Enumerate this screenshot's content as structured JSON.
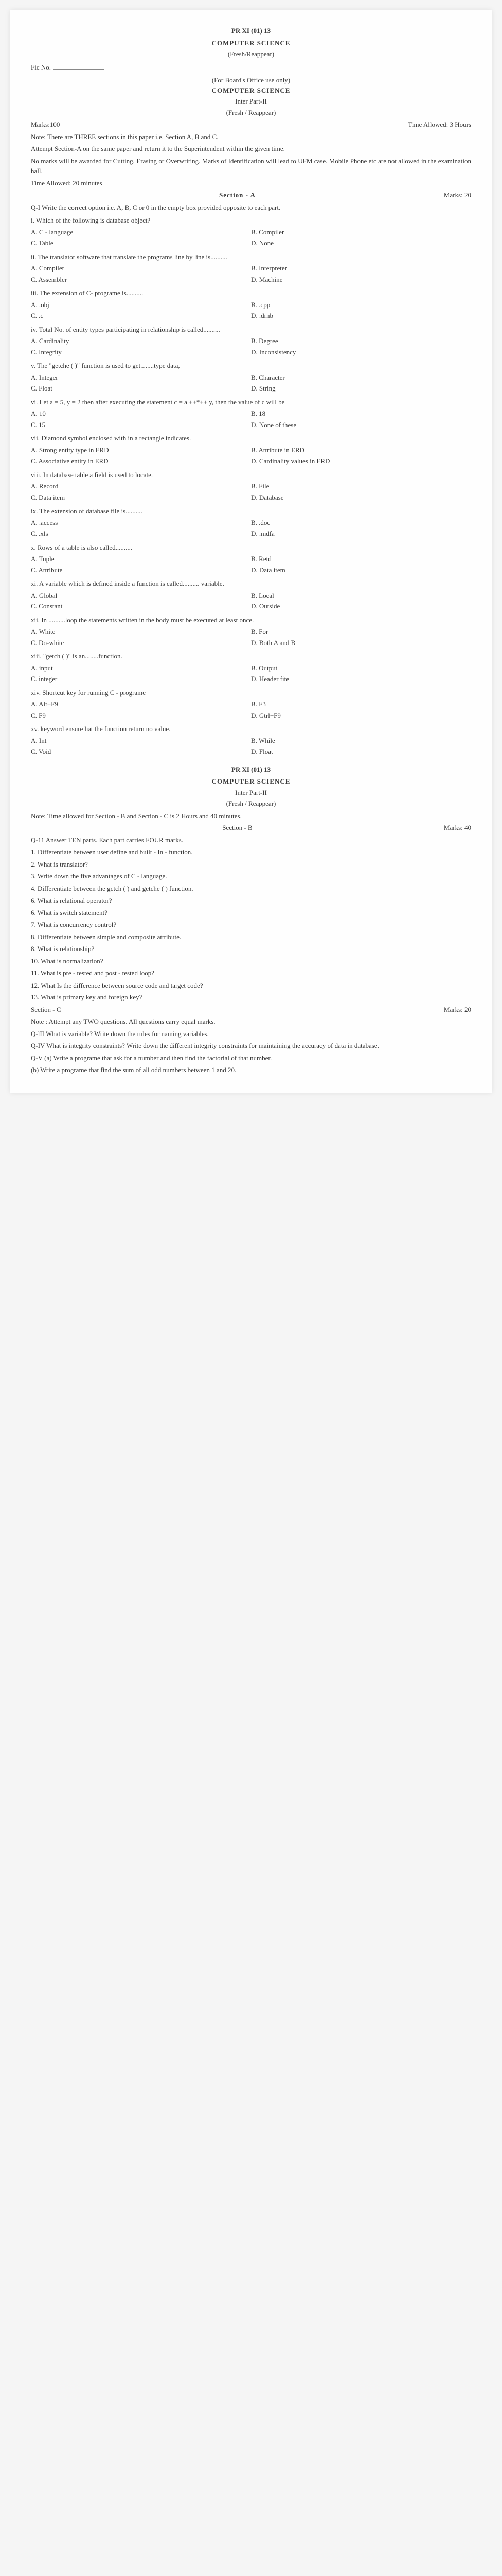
{
  "header": {
    "code": "PR XI (01) 13",
    "subject": "COMPUTER SCIENCE",
    "mode": "(Fresh/Reappear)",
    "fic_label": "Fic No.",
    "office": "(For Board's Office use only)",
    "subject2": "COMPUTER SCIENCE",
    "inter": "Inter Part-II",
    "mode2": "(Fresh / Reappear)",
    "marks_label": "Marks:100",
    "time_label": "Time Allowed: 3 Hours",
    "note": "Note: There are THREE sections in this paper i.e. Section A, B and C.",
    "instr1": "Attempt Section-A on the same paper and return it to the Superintendent within the given time.",
    "instr2": "No marks will be awarded for Cutting, Erasing or Overwriting. Marks of Identification will lead to UFM case. Mobile Phone etc are not allowed in the examination hall.",
    "time_allowed": "Time Allowed: 20 minutes",
    "sectionA": "Section - A",
    "sectionA_marks": "Marks: 20"
  },
  "q1": {
    "stem": "Q-I  Write the correct option i.e. A, B, C or 0 in the empty box provided opposite to each part.",
    "items": [
      {
        "n": "i.",
        "q": "Which of the following is database object?",
        "opts": [
          "A.   C - language",
          "B.   Compiler",
          "C.   Table",
          "D.   None"
        ]
      },
      {
        "n": "ii.",
        "q": "The translator software that translate the programs line by line is..........",
        "opts": [
          "A.   Compiler",
          "B.   Interpreter",
          "C.   Assembler",
          "D.   Machine"
        ]
      },
      {
        "n": "iii.",
        "q": "The extension of C- programe is..........",
        "opts": [
          "A.   .obj",
          "B.   .cpp",
          "C.   .c",
          "D.   .drnb"
        ]
      },
      {
        "n": "iv.",
        "q": "Total No. of entity types participating in relationship is called..........",
        "opts": [
          "A.   Cardinality",
          "B.   Degree",
          "C.   Integrity",
          "D.   Inconsistency"
        ]
      },
      {
        "n": "v.",
        "q": "The \"getche ( )\" function is used to get........type data,",
        "opts": [
          "A.   Integer",
          "B.   Character",
          "C.   Float",
          "D.   String"
        ]
      },
      {
        "n": "vi.",
        "q": "Let a = 5, y = 2 then after executing the statement c = a ++*++ y, then the value     of c will be",
        "opts": [
          "A.   10",
          "B.   18",
          "C.   15",
          "D.   None of these"
        ]
      },
      {
        "n": "vii.",
        "q": "Diamond symbol enclosed with in a rectangle indicates.",
        "opts": [
          "A.   Strong entity type in ERD",
          "B.   Attribute in ERD",
          "C.   Associative entity in ERD",
          "D.   Cardinality values in ERD"
        ]
      },
      {
        "n": "viii.",
        "q": "In database table a field is used to locate.",
        "opts": [
          "A.   Record",
          "B.   File",
          "C.   Data item",
          "D.   Database"
        ]
      },
      {
        "n": "ix.",
        "q": "The extension of database    file is..........",
        "opts": [
          "A.   .access",
          "B.   .doc",
          "C.   .xls",
          "D.   .mdfa"
        ]
      },
      {
        "n": "x.",
        "q": "Rows of a table is also called..........",
        "opts": [
          "A.   Tuple",
          "B.   Retd",
          "C.   Attribute",
          "D.   Data item"
        ]
      },
      {
        "n": "xi.",
        "q": "A variable which is defined inside a function is called.......... variable.",
        "opts": [
          "A.   Global",
          "B.   Local",
          "C.   Constant",
          "D.   Outside"
        ]
      },
      {
        "n": "xii.",
        "q": "In ..........loop the statements written in the body must be executed at least once.",
        "opts": [
          "A.   White",
          "B.   For",
          "C.   Do-white",
          "D.   Both A and B"
        ]
      },
      {
        "n": "xiii.",
        "q": "\"getch ( )\" is an........function.",
        "opts": [
          "A.   input",
          "B.   Output",
          "C.   integer",
          "D.   Header fite"
        ]
      },
      {
        "n": "xiv.",
        "q": "Shortcut key for running C - programe",
        "opts": [
          "A.   Alt+F9",
          "B.   F3",
          "C.   F9",
          "D.   Gtrl+F9"
        ]
      },
      {
        "n": "xv.",
        "q": "keyword ensure hat the function return no value.",
        "opts": [
          "A.   Int",
          "B.   While",
          "C.   Void",
          "D.   Float"
        ]
      }
    ]
  },
  "mid": {
    "code": "PR XI (01) 13",
    "subject": "COMPUTER SCIENCE",
    "inter": "Inter Part-II",
    "mode": "(Fresh / Reappear)",
    "note": "Note: Time allowed for Section - B and Section - C is 2 Hours and 40 minutes.",
    "sectionB": "Section - B",
    "sectionB_marks": "Marks: 40",
    "q2stem": "Q-11   Answer TEN parts. Each part carries FOUR marks.",
    "b_items": [
      "1.   Differentiate between user define and built - In - function.",
      "2.   What is translator?",
      "3.   Write down the five advantages of C - language.",
      "4.   Differentiate between the gctch ( ) and getche ( ) function.",
      "6.   What is relational operator?",
      "6.   What is switch statement?",
      "7.   What is concurrency control?",
      "8.   Differentiate between simple and composite attribute.",
      "8.   What is relationship?",
      "10.   What is normalization?",
      "11.   What is pre - tested and post - tested loop?",
      "12.   What Is the difference between source code and target code?",
      "13.   What is primary key and foreign key?"
    ],
    "sectionC": "Section - C",
    "sectionC_marks": "Marks: 20",
    "noteC": "Note : Attempt any TWO questions. All questions carry equal marks.",
    "c_items": [
      "Q-lII    What is variable? Write down the rules for naming variables.",
      "Q-IV   What is integrity constraints? Write down the different integrity constraints for maintaining the accuracy of data in database.",
      "Q-V   (a)   Write a programe that ask for a number and then find the factorial of that number.",
      "(b)   Write a programe that find the sum of all odd numbers between 1 and 20."
    ]
  },
  "style": {
    "bg": "#fefefe",
    "text": "#3a3a3a",
    "font": "Times New Roman",
    "fontsize": 13
  }
}
